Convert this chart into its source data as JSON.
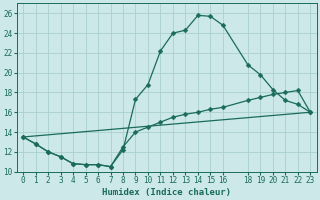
{
  "xlabel": "Humidex (Indice chaleur)",
  "bg_color": "#cce8e8",
  "grid_color": "#aacfcf",
  "line_color": "#1a6b5a",
  "xlim": [
    -0.5,
    23.5
  ],
  "ylim": [
    10,
    27
  ],
  "xticks": [
    0,
    1,
    2,
    3,
    4,
    5,
    6,
    7,
    8,
    9,
    10,
    11,
    12,
    13,
    14,
    15,
    16,
    18,
    19,
    20,
    21,
    22,
    23
  ],
  "yticks": [
    10,
    12,
    14,
    16,
    18,
    20,
    22,
    24,
    26
  ],
  "line1_x": [
    0,
    1,
    2,
    3,
    4,
    5,
    6,
    7,
    8,
    9,
    10,
    11,
    12,
    13,
    14,
    15,
    16,
    18,
    19,
    20,
    21,
    22,
    23
  ],
  "line1_y": [
    13.5,
    12.8,
    12.0,
    11.5,
    10.8,
    10.7,
    10.7,
    10.5,
    12.2,
    17.3,
    18.8,
    22.2,
    24.0,
    24.3,
    25.8,
    25.7,
    24.8,
    20.8,
    19.8,
    18.3,
    17.2,
    16.8,
    16.0
  ],
  "line2_x": [
    0,
    1,
    2,
    3,
    4,
    5,
    6,
    7,
    8,
    9,
    10,
    11,
    12,
    13,
    14,
    15,
    16,
    18,
    19,
    20,
    21,
    22,
    23
  ],
  "line2_y": [
    13.5,
    12.8,
    12.0,
    11.5,
    10.8,
    10.7,
    10.7,
    10.5,
    12.5,
    14.0,
    14.5,
    15.0,
    15.5,
    15.8,
    16.0,
    16.3,
    16.5,
    17.2,
    17.5,
    17.8,
    18.0,
    18.2,
    16.0
  ],
  "line3_x": [
    0,
    23
  ],
  "line3_y": [
    13.5,
    16.0
  ],
  "tick_fontsize": 5.5,
  "xlabel_fontsize": 6.5,
  "marker_size": 2.5,
  "linewidth": 0.9
}
